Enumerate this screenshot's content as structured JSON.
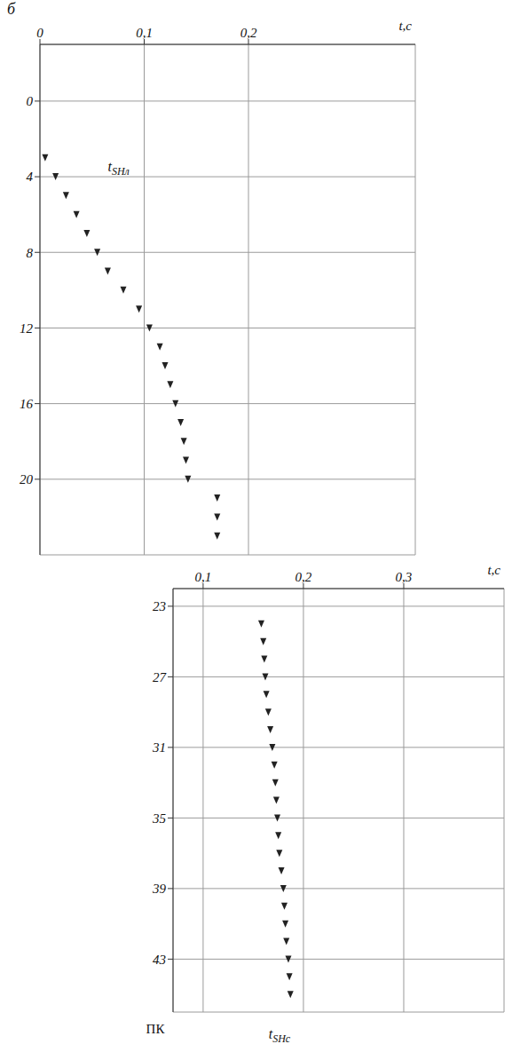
{
  "chart_data": [
    {
      "type": "scatter",
      "title": "б",
      "x_label": "t,c",
      "xlim": [
        0,
        0.36
      ],
      "xticks": [
        0,
        {
          "value": 0.1,
          "label": "0,1"
        },
        {
          "value": 0.2,
          "label": "0,2"
        }
      ],
      "ylim": [
        -3,
        24
      ],
      "yticks": [
        0,
        4,
        8,
        12,
        16,
        20
      ],
      "grid": true,
      "series": [
        {
          "color": "#222222",
          "marker": "triangle-down",
          "x": [
            0.005,
            0.015,
            0.025,
            0.035,
            0.045,
            0.055,
            0.065,
            0.08,
            0.095,
            0.105,
            0.115,
            0.12,
            0.125,
            0.13,
            0.135,
            0.138,
            0.14,
            0.142,
            0.17,
            0.17,
            0.17
          ],
          "values": [
            3,
            4,
            5,
            6,
            7,
            8,
            9,
            10,
            11,
            12,
            13,
            14,
            15,
            16,
            17,
            18,
            19,
            20,
            21,
            22,
            23
          ]
        }
      ],
      "annotations": [
        {
          "text": "t",
          "subscript": "SHл",
          "x": 0.06,
          "y": 3.5
        }
      ]
    },
    {
      "type": "scatter",
      "x_label": "t,c",
      "y_label": "ПК",
      "xlim": [
        0.07,
        0.4
      ],
      "xticks": [
        {
          "value": 0.1,
          "label": "0,1"
        },
        {
          "value": 0.2,
          "label": "0,2"
        },
        {
          "value": 0.3,
          "label": "0,3"
        }
      ],
      "ylim": [
        22,
        46
      ],
      "yticks": [
        23,
        27,
        31,
        35,
        39,
        43
      ],
      "grid": true,
      "series": [
        {
          "color": "#222222",
          "marker": "triangle-down",
          "x": [
            0.158,
            0.16,
            0.161,
            0.162,
            0.163,
            0.165,
            0.167,
            0.169,
            0.171,
            0.172,
            0.173,
            0.174,
            0.175,
            0.176,
            0.178,
            0.18,
            0.181,
            0.182,
            0.183,
            0.185,
            0.186,
            0.187
          ],
          "values": [
            24,
            25,
            26,
            27,
            28,
            29,
            30,
            31,
            32,
            33,
            34,
            35,
            36,
            37,
            38,
            39,
            40,
            41,
            42,
            43,
            44,
            45
          ]
        }
      ],
      "annotations": [
        {
          "text": "t",
          "subscript": "SHс",
          "x": 0.16,
          "y": 46
        }
      ]
    }
  ]
}
